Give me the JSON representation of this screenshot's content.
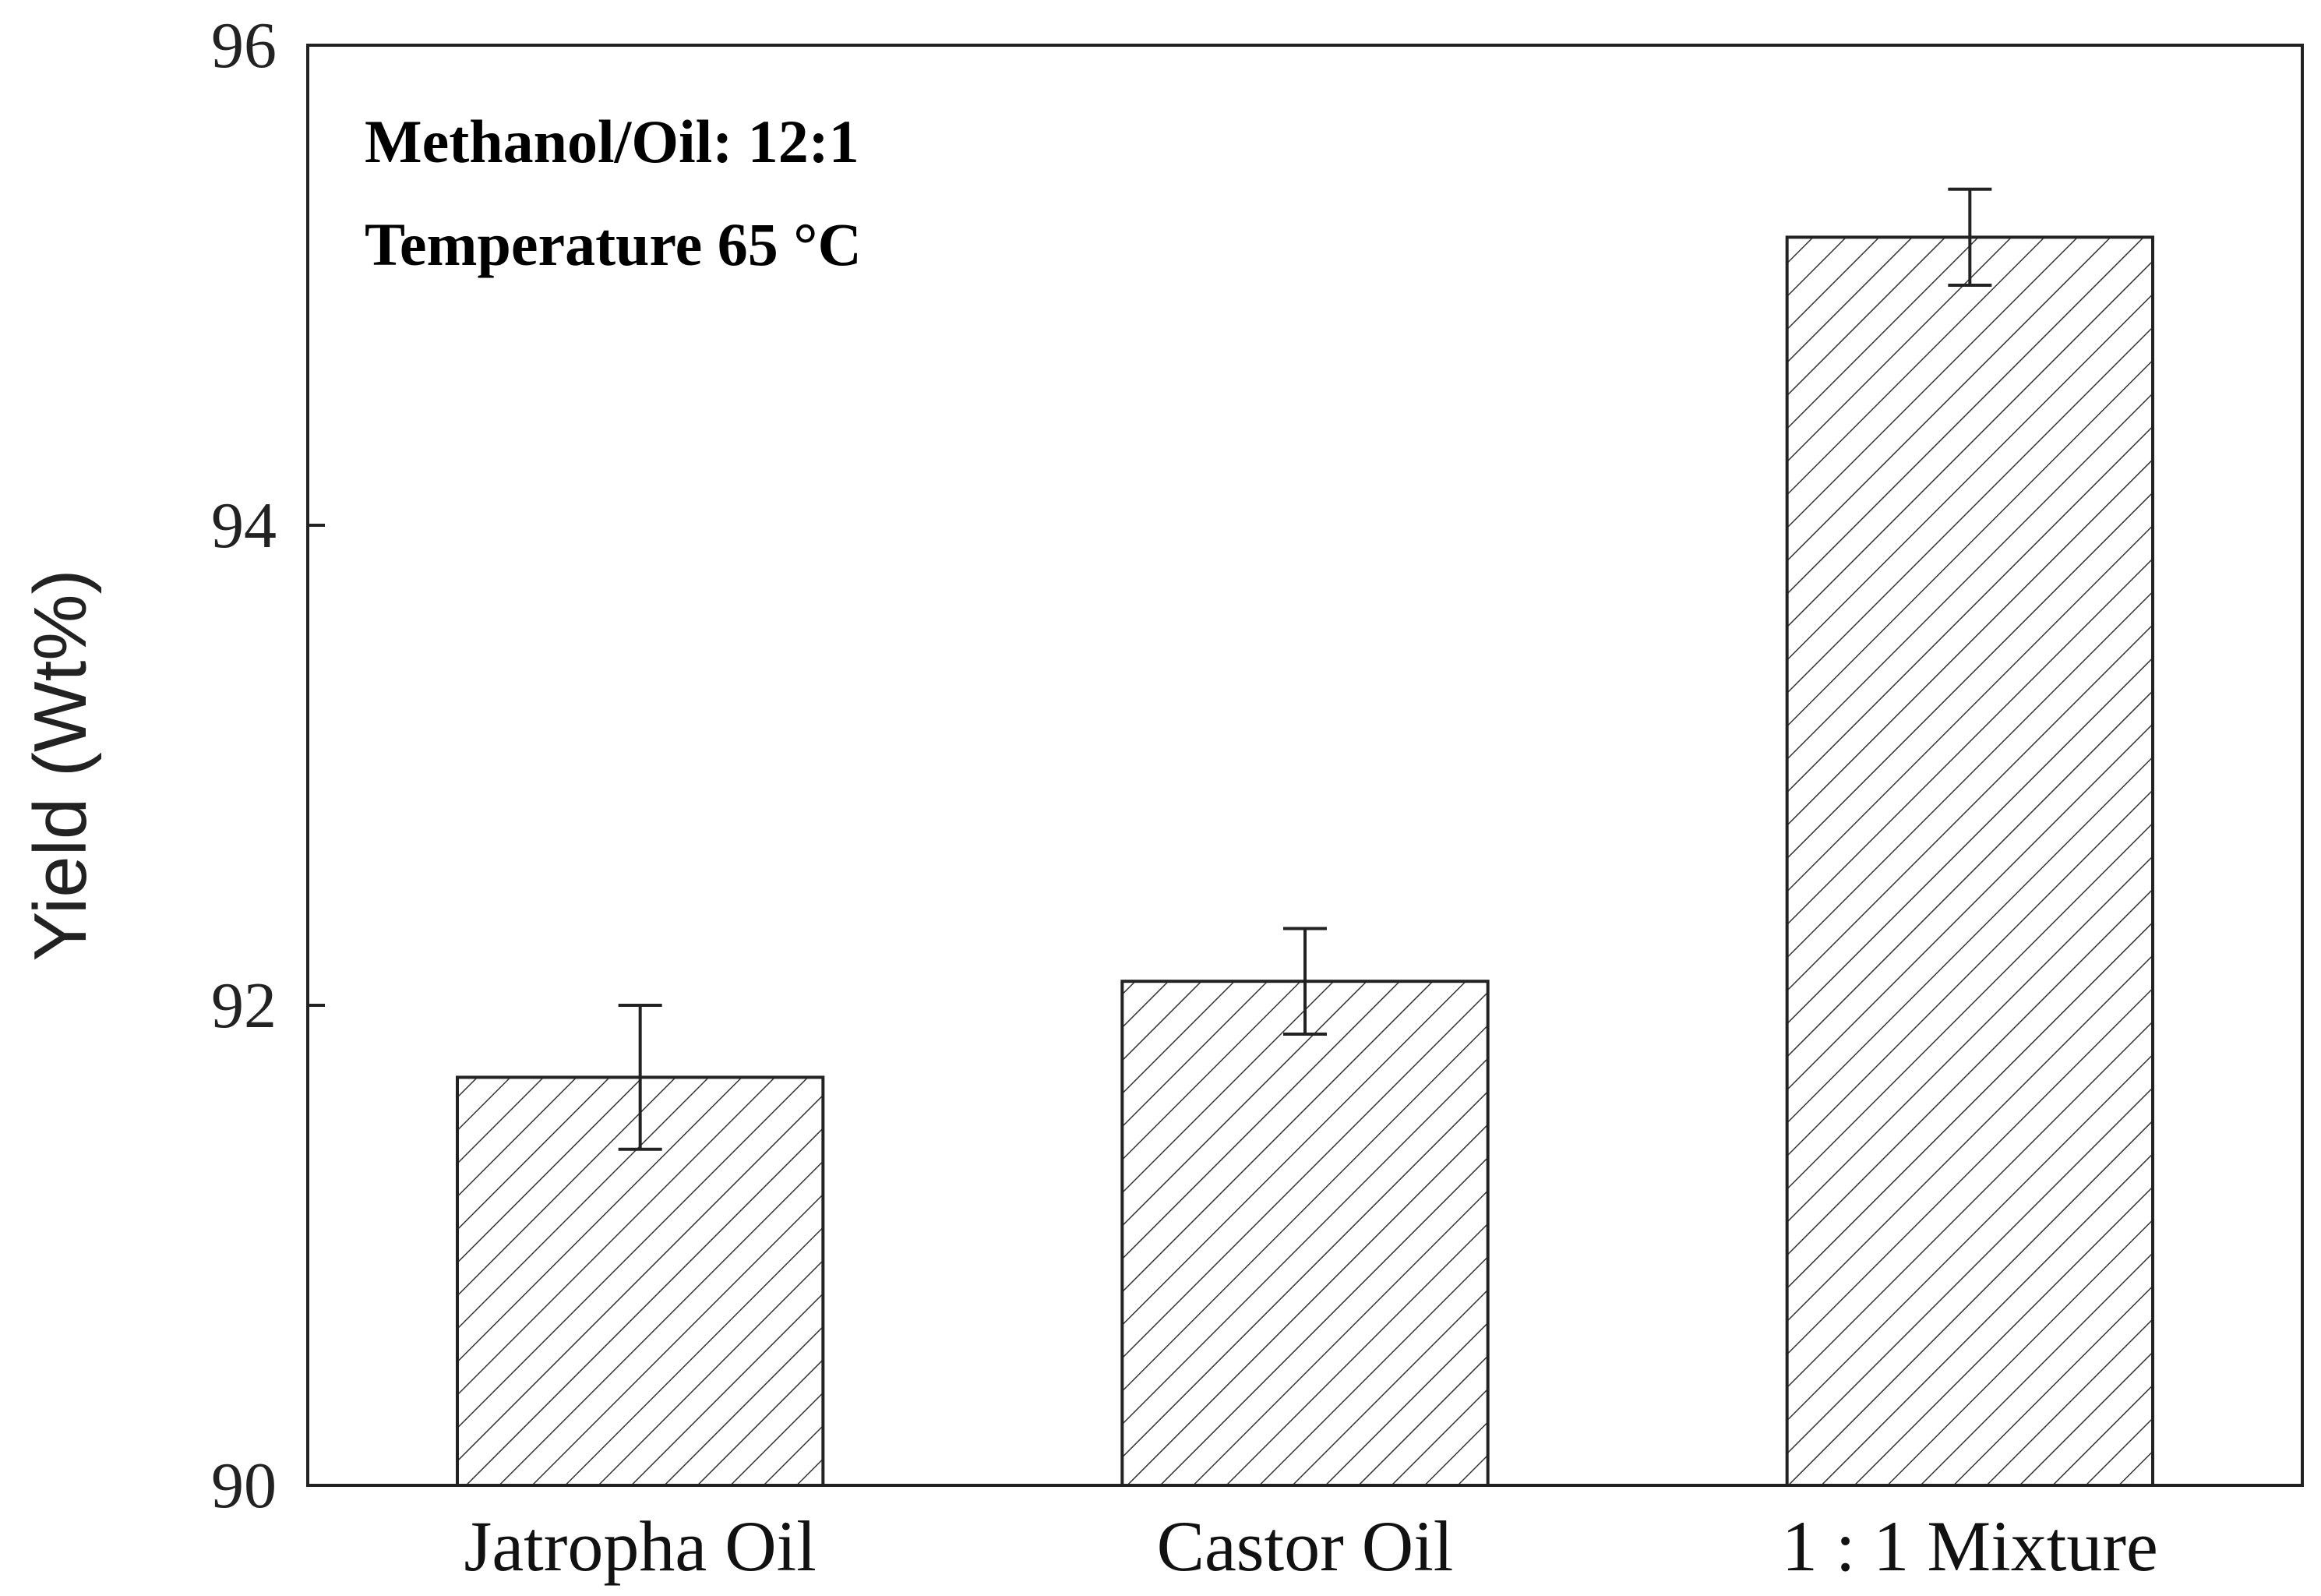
{
  "chart_data": {
    "type": "bar",
    "categories": [
      "Jatropha Oil",
      "Castor Oil",
      "1 : 1 Mixture"
    ],
    "values": [
      91.7,
      92.1,
      95.2
    ],
    "errors": [
      0.3,
      0.22,
      0.2
    ],
    "title": "",
    "xlabel": "",
    "ylabel": "Yield (Wt%)",
    "ylim": [
      90,
      96
    ],
    "yticks": [
      90,
      92,
      94,
      96
    ],
    "yticks_labels": [
      "90",
      "92",
      "94",
      "96"
    ],
    "grid": false,
    "bar_fill": "hatched",
    "annotations": [
      "Methanol/Oil: 12:1",
      "Temperature 65 °C"
    ],
    "colors": {
      "axis": "#222222",
      "bar_edge": "#222222",
      "hatch": "#333333",
      "background": "#ffffff"
    }
  }
}
